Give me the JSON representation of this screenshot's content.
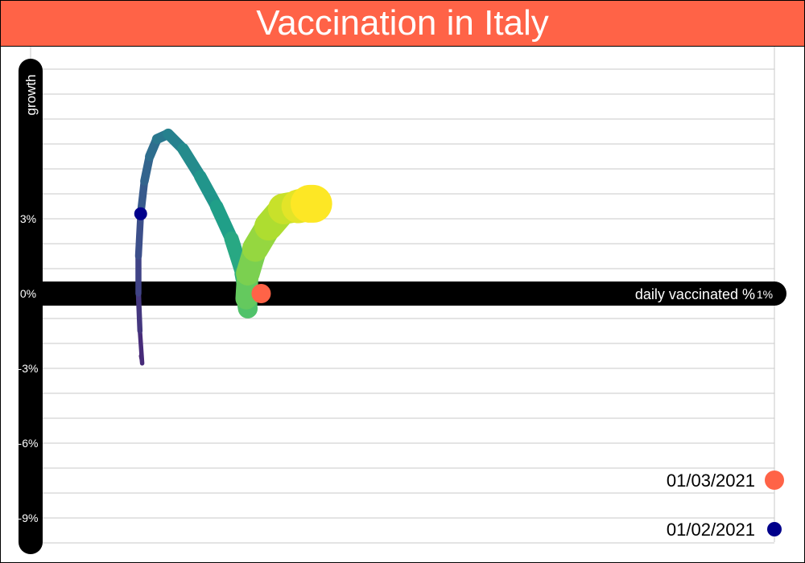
{
  "colors": {
    "title_bg": "#FF6347",
    "axis_band": "#000000",
    "grid": "#C8C8C8",
    "start_marker": "#00008B",
    "end_marker": "#FF6347"
  },
  "chart_data": {
    "type": "line",
    "title": "Vaccination in Italy",
    "xlabel": "daily vaccinated %",
    "ylabel": "growth",
    "x_tick_labels": [
      "0%",
      "1%"
    ],
    "x_ticks": [
      0,
      1
    ],
    "y_tick_labels": [
      "3%",
      "0%",
      "-3%",
      "-6%",
      "-9%"
    ],
    "y_ticks": [
      3,
      0,
      -3,
      -6,
      -9
    ],
    "xlim": [
      0,
      1
    ],
    "ylim": [
      -10,
      10
    ],
    "grid": true,
    "color_scale": "viridis (early = purple, late = yellow)",
    "series": [
      {
        "x": [
          0.147,
          0.148,
          0.148,
          0.15,
          0.147,
          0.145,
          0.145,
          0.148,
          0.153,
          0.16,
          0.17,
          0.185,
          0.205,
          0.228,
          0.25,
          0.27,
          0.285,
          0.293,
          0.292,
          0.29,
          0.292,
          0.302,
          0.32,
          0.34,
          0.36,
          0.375,
          0.38
        ],
        "y": [
          -0.6,
          -1.7,
          -2.5,
          -2.8,
          -1.5,
          0.0,
          1.5,
          3.2,
          4.5,
          5.5,
          6.2,
          6.4,
          5.8,
          4.7,
          3.5,
          2.2,
          0.8,
          -0.4,
          -0.6,
          -0.2,
          0.8,
          1.8,
          2.7,
          3.4,
          3.5,
          3.6,
          3.6
        ],
        "widths": [
          2,
          3,
          4,
          5,
          6,
          7,
          8,
          9,
          10,
          11,
          12,
          13,
          14,
          15,
          16,
          17,
          19,
          21,
          23,
          26,
          28,
          31,
          34,
          37,
          40,
          44,
          50
        ]
      }
    ],
    "annotations": [
      {
        "label": "01/02/2021",
        "x": 0.148,
        "y": 3.2,
        "color": "#00008B",
        "size": "small"
      },
      {
        "label": "01/03/2021",
        "x": 0.31,
        "y": 0.0,
        "color": "#FF6347",
        "size": "large"
      }
    ],
    "legend": [
      {
        "label": "01/03/2021",
        "color": "#FF6347",
        "size": "large"
      },
      {
        "label": "01/02/2021",
        "color": "#00008B",
        "size": "small"
      }
    ],
    "legend_position": "bottom-right"
  }
}
